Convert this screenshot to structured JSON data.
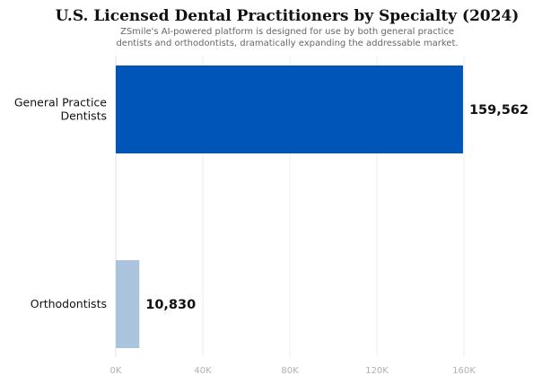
{
  "chart_data": {
    "type": "bar",
    "orientation": "horizontal",
    "title": "U.S. Licensed Dental Practitioners by Specialty (2024)",
    "subtitle_lines": [
      "ZSmile's AI-powered platform is designed for use by both general practice",
      "dentists and orthodontists, dramatically expanding the addressable market."
    ],
    "categories": [
      [
        "General Practice",
        "Dentists"
      ],
      [
        "Orthodontists"
      ]
    ],
    "values": [
      159562,
      10830
    ],
    "value_labels": [
      "159,562",
      "10,830"
    ],
    "bar_colors": [
      "#0055b8",
      "#a9c4dc"
    ],
    "x_ticks": [
      0,
      40000,
      80000,
      120000,
      160000
    ],
    "x_tick_labels": [
      "0K",
      "40K",
      "80K",
      "120K",
      "160K"
    ],
    "xlim": [
      0,
      160000
    ],
    "grid": true,
    "legend": "none"
  }
}
